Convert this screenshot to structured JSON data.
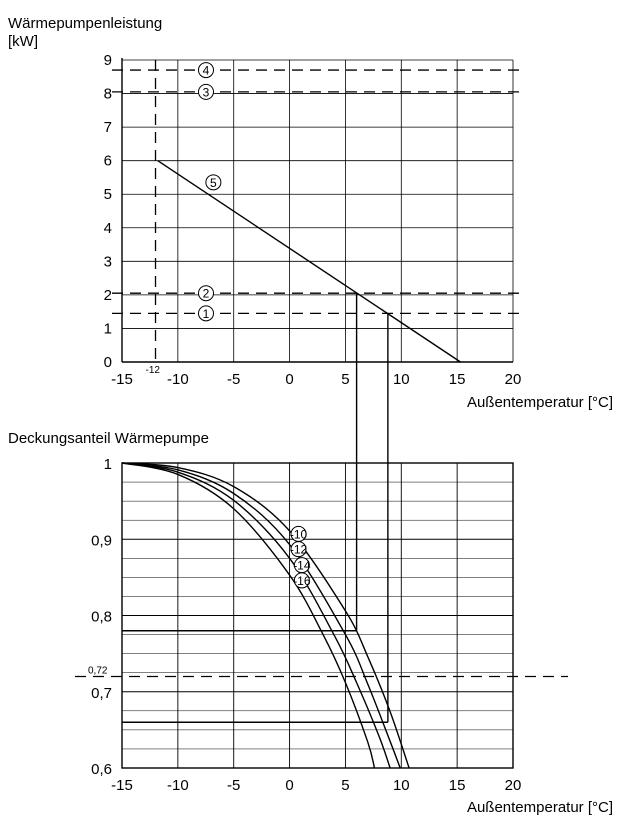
{
  "chart_data": [
    {
      "id": "power",
      "type": "line",
      "title": "",
      "ylabel": "Wärmepumpenleistung",
      "yunit": "[kW]",
      "xlabel": "Außentemperatur [°C]",
      "xlim": [
        -15,
        20
      ],
      "ylim": [
        0,
        9
      ],
      "x_ticks": [
        -15,
        -10,
        -5,
        0,
        5,
        10,
        15,
        20
      ],
      "y_ticks": [
        0,
        1,
        2,
        3,
        4,
        5,
        6,
        7,
        8,
        9
      ],
      "x_tick_labels": [
        "-15",
        "-10",
        "-5",
        "0",
        "5",
        "10",
        "15",
        "20"
      ],
      "y_tick_labels": [
        "0",
        "1",
        "2",
        "3",
        "4",
        "5",
        "6",
        "7",
        "8",
        "9"
      ],
      "grid": true,
      "design_temp": -12,
      "design_temp_label": "-12",
      "horizontal_lines": [
        {
          "marker": "1",
          "y": 1.45
        },
        {
          "marker": "2",
          "y": 2.05
        },
        {
          "marker": "3",
          "y": 8.05
        },
        {
          "marker": "4",
          "y": 8.7
        }
      ],
      "series": [
        {
          "marker": "5",
          "x": [
            -11.8,
            15.3
          ],
          "y": [
            6.0,
            0.0
          ]
        }
      ],
      "intersections": [
        {
          "x": 6.0,
          "y": 2.05
        },
        {
          "x": 8.8,
          "y": 1.45
        }
      ]
    },
    {
      "id": "coverage",
      "type": "line",
      "title": "",
      "ylabel": "Deckungsanteil  Wärmepumpe",
      "xlabel": "Außentemperatur [°C]",
      "xlim": [
        -15,
        20
      ],
      "ylim": [
        0.6,
        1
      ],
      "x_ticks": [
        -15,
        -10,
        -5,
        0,
        5,
        10,
        15,
        20
      ],
      "y_ticks": [
        0.6,
        0.7,
        0.8,
        0.9,
        1.0
      ],
      "x_tick_labels": [
        "-15",
        "-10",
        "-5",
        "0",
        "5",
        "10",
        "15",
        "20"
      ],
      "y_tick_labels": [
        "0,6",
        "0,7",
        "0,8",
        "0,9",
        "1"
      ],
      "y_minor_gridlines": [
        0.625,
        0.65,
        0.675,
        0.725,
        0.75,
        0.775,
        0.825,
        0.85,
        0.875,
        0.925,
        0.95,
        0.975
      ],
      "grid": true,
      "reference_line": {
        "y": 0.72,
        "label": "0,72"
      },
      "series": [
        {
          "marker": "-10",
          "x": [
            -15,
            -10,
            -5,
            0,
            5,
            7,
            9,
            10.7
          ],
          "y": [
            1.0,
            0.994,
            0.969,
            0.911,
            0.806,
            0.746,
            0.674,
            0.6
          ]
        },
        {
          "marker": "-12",
          "x": [
            -15,
            -10,
            -5,
            0,
            5,
            7,
            9,
            9.9
          ],
          "y": [
            1.0,
            0.991,
            0.96,
            0.893,
            0.775,
            0.71,
            0.635,
            0.6
          ]
        },
        {
          "marker": "-14",
          "x": [
            -15,
            -10,
            -5,
            0,
            4,
            6,
            8,
            9.0
          ],
          "y": [
            1.0,
            0.988,
            0.951,
            0.875,
            0.774,
            0.712,
            0.642,
            0.6
          ]
        },
        {
          "marker": "-16",
          "x": [
            -15,
            -10,
            -5,
            0,
            3,
            5,
            7,
            7.6
          ],
          "y": [
            1.0,
            0.985,
            0.94,
            0.853,
            0.775,
            0.712,
            0.634,
            0.6
          ]
        }
      ],
      "readings": [
        {
          "x": 6.0,
          "y": 0.78
        },
        {
          "x": 8.8,
          "y": 0.66
        }
      ]
    }
  ]
}
